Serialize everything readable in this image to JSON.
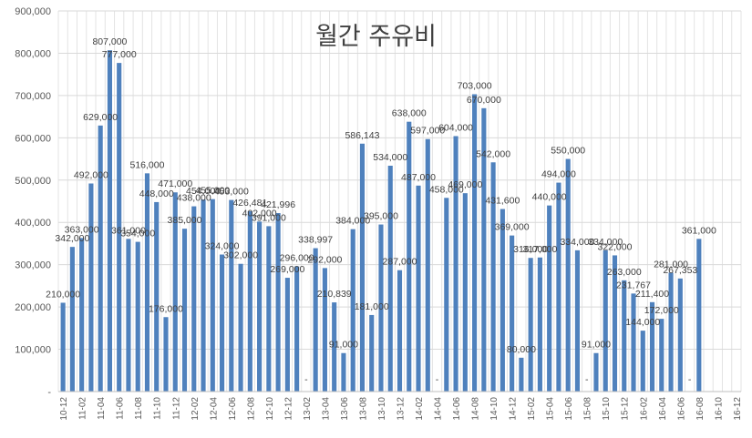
{
  "chart_data": {
    "type": "bar",
    "title": "월간 주유비",
    "xlabel": "",
    "ylabel": "",
    "ylim": [
      0,
      900000
    ],
    "yticks": [
      "-",
      "100,000",
      "200,000",
      "300,000",
      "400,000",
      "500,000",
      "600,000",
      "700,000",
      "800,000",
      "900,000"
    ],
    "grid": true,
    "bar_color": "#4f81bd",
    "categories": [
      "10-12",
      "11-01",
      "11-02",
      "11-03",
      "11-04",
      "11-05",
      "11-06",
      "11-07",
      "11-08",
      "11-09",
      "11-10",
      "11-11",
      "11-12",
      "12-01",
      "12-02",
      "12-03",
      "12-04",
      "12-05",
      "12-06",
      "12-07",
      "12-08",
      "12-09",
      "12-10",
      "12-11",
      "12-12",
      "13-01",
      "13-02",
      "13-03",
      "13-04",
      "13-05",
      "13-06",
      "13-07",
      "13-08",
      "13-09",
      "13-10",
      "13-11",
      "13-12",
      "14-01",
      "14-02",
      "14-03",
      "14-04",
      "14-05",
      "14-06",
      "14-07",
      "14-08",
      "14-09",
      "14-10",
      "14-11",
      "14-12",
      "15-01",
      "15-02",
      "15-03",
      "15-04",
      "15-05",
      "15-06",
      "15-07",
      "15-08",
      "15-09",
      "15-10",
      "15-11",
      "15-12",
      "16-01",
      "16-02",
      "16-03",
      "16-04",
      "16-05",
      "16-06",
      "16-07",
      "16-08",
      "16-09",
      "16-10",
      "16-11",
      "16-12"
    ],
    "x_tick_labels": [
      "10-12",
      "11-02",
      "11-04",
      "11-06",
      "11-08",
      "11-10",
      "11-12",
      "12-02",
      "12-04",
      "12-06",
      "12-08",
      "12-10",
      "12-12",
      "13-02",
      "13-04",
      "13-06",
      "13-08",
      "13-10",
      "13-12",
      "14-02",
      "14-04",
      "14-06",
      "14-08",
      "14-10",
      "14-12",
      "15-02",
      "15-04",
      "15-06",
      "15-08",
      "15-10",
      "15-12",
      "16-02",
      "16-04",
      "16-06",
      "16-08",
      "16-10",
      "16-12"
    ],
    "values": [
      210000,
      342000,
      363000,
      492000,
      629000,
      807000,
      777000,
      361000,
      354000,
      516000,
      448000,
      176000,
      471000,
      385000,
      438000,
      454000,
      455000,
      324000,
      453000,
      302000,
      426481,
      402000,
      391000,
      421996,
      269000,
      296000,
      0,
      338997,
      292000,
      210839,
      91000,
      384000,
      586143,
      181000,
      395000,
      534000,
      287000,
      638000,
      487000,
      597000,
      0,
      458000,
      604000,
      469000,
      703000,
      670000,
      542000,
      431600,
      369000,
      80000,
      316000,
      317000,
      440000,
      494000,
      550000,
      334000,
      0,
      91000,
      334000,
      322000,
      263000,
      231767,
      144000,
      211400,
      172000,
      281000,
      267353,
      0,
      361000,
      null,
      null,
      null,
      null
    ],
    "data_labels": [
      "210,000",
      "342,000",
      "363,000",
      "492,000",
      "629,000",
      "807,000",
      "777,000",
      "361,000",
      "354,000",
      "516,000",
      "448,000",
      "176,000",
      "471,000",
      "385,000",
      "438,000",
      "454,000",
      "455,000",
      "324,000",
      "453,000",
      "302,000",
      "426,481",
      "402,000",
      "391,000",
      "421,996",
      "269,000",
      "296,000",
      "-",
      "338,997",
      "292,000",
      "210,839",
      "91,000",
      "384,000",
      "586,143",
      "181,000",
      "395,000",
      "534,000",
      "287,000",
      "638,000",
      "487,000",
      "597,000",
      "-",
      "458,000",
      "604,000",
      "469,000",
      "703,000",
      "670,000",
      "542,000",
      "431,600",
      "369,000",
      "80,000",
      "316,000",
      "317,000",
      "440,000",
      "494,000",
      "550,000",
      "334,000",
      "-",
      "91,000",
      "334,000",
      "322,000",
      "263,000",
      "231,767",
      "144,000",
      "211,400",
      "172,000",
      "281,000",
      "267,353",
      "-",
      "361,000",
      "",
      "",
      "",
      ""
    ]
  }
}
